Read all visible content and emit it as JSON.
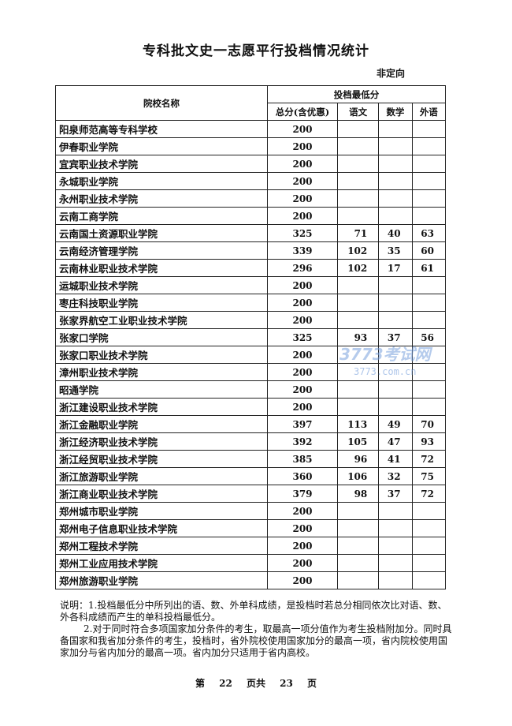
{
  "title": "专科批文史一志愿平行投档情况统计",
  "subtitle": "非定向",
  "header": {
    "name": "院校名称",
    "group": "投档最低分",
    "total": "总分(含优惠)",
    "chinese": "语文",
    "math": "数学",
    "english": "外语"
  },
  "rows": [
    [
      "阳泉师范高等专科学校",
      "200",
      "",
      "",
      ""
    ],
    [
      "伊春职业学院",
      "200",
      "",
      "",
      ""
    ],
    [
      "宜宾职业技术学院",
      "200",
      "",
      "",
      ""
    ],
    [
      "永城职业学院",
      "200",
      "",
      "",
      ""
    ],
    [
      "永州职业技术学院",
      "200",
      "",
      "",
      ""
    ],
    [
      "云南工商学院",
      "200",
      "",
      "",
      ""
    ],
    [
      "云南国土资源职业学院",
      "325",
      "71",
      "40",
      "63"
    ],
    [
      "云南经济管理学院",
      "339",
      "102",
      "35",
      "60"
    ],
    [
      "云南林业职业技术学院",
      "296",
      "102",
      "17",
      "61"
    ],
    [
      "运城职业技术学院",
      "200",
      "",
      "",
      ""
    ],
    [
      "枣庄科技职业学院",
      "200",
      "",
      "",
      ""
    ],
    [
      "张家界航空工业职业技术学院",
      "200",
      "",
      "",
      ""
    ],
    [
      "张家口学院",
      "325",
      "93",
      "37",
      "56"
    ],
    [
      "张家口职业技术学院",
      "200",
      "",
      "",
      ""
    ],
    [
      "漳州职业技术学院",
      "200",
      "",
      "",
      ""
    ],
    [
      "昭通学院",
      "200",
      "",
      "",
      ""
    ],
    [
      "浙江建设职业技术学院",
      "200",
      "",
      "",
      ""
    ],
    [
      "浙江金融职业学院",
      "397",
      "113",
      "49",
      "70"
    ],
    [
      "浙江经济职业技术学院",
      "392",
      "105",
      "47",
      "93"
    ],
    [
      "浙江经贸职业技术学院",
      "385",
      "96",
      "41",
      "72"
    ],
    [
      "浙江旅游职业学院",
      "360",
      "106",
      "32",
      "75"
    ],
    [
      "浙江商业职业技术学院",
      "379",
      "98",
      "37",
      "72"
    ],
    [
      "郑州城市职业学院",
      "200",
      "",
      "",
      ""
    ],
    [
      "郑州电子信息职业技术学院",
      "200",
      "",
      "",
      ""
    ],
    [
      "郑州工程技术学院",
      "200",
      "",
      "",
      ""
    ],
    [
      "郑州工业应用技术学院",
      "200",
      "",
      "",
      ""
    ],
    [
      "郑州旅游职业学院",
      "200",
      "",
      "",
      ""
    ]
  ],
  "notes": [
    "说明：1.投档最低分中所列出的语、数、外单科成绩，是投档时若总分相同依次比对语、数、外各科成绩而产生的单科投档最低分。",
    "2.对于同时符合多项国家加分条件的考生，取最高一项分值作为考生投档附加分。同时具备国家和我省加分条件的考生，投档时，省外院校使用国家加分的最高一项，省内院校使用国家加分与省内加分的最高一项。省内加分只适用于省内高校。"
  ],
  "footer": "第 22 页共 23 页",
  "watermark": {
    "text": "3773考试网",
    "url": "3773.com.cn"
  }
}
